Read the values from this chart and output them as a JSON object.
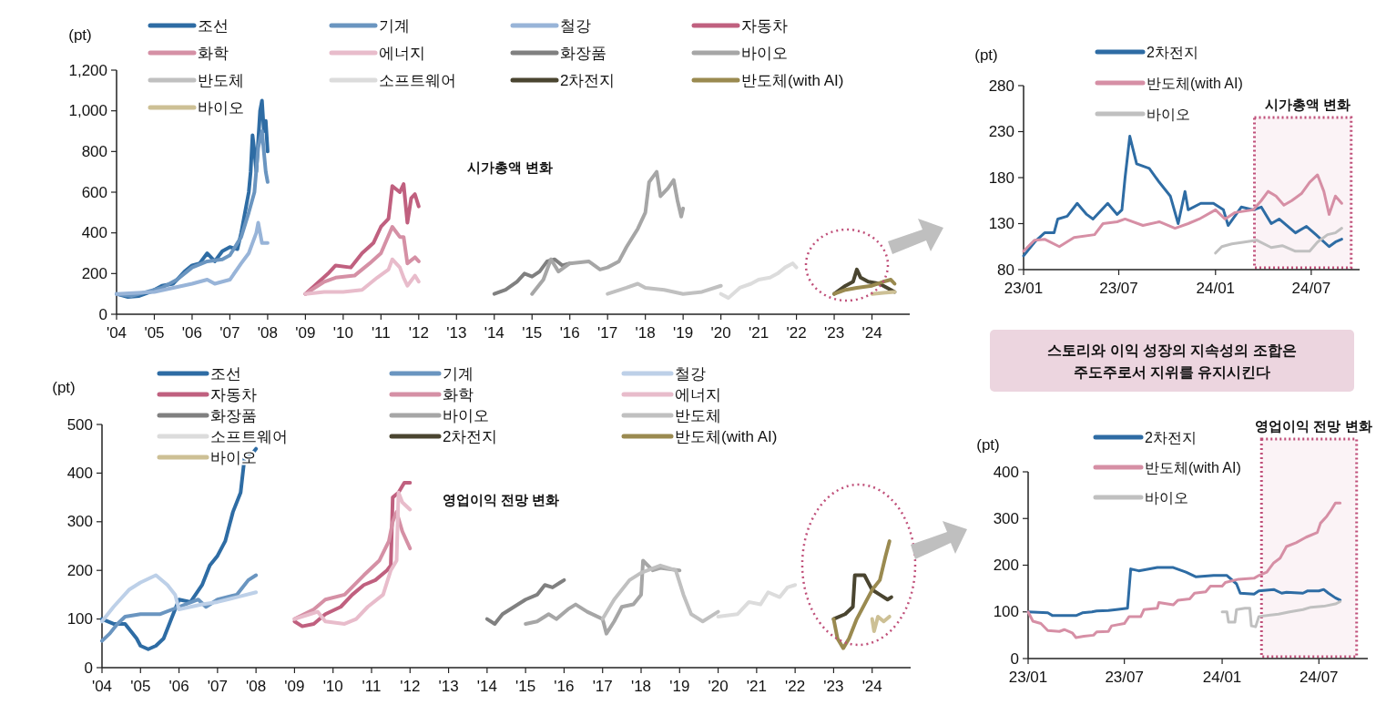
{
  "chart_data": [
    {
      "type": "line",
      "ylabel": "(pt)",
      "xlim": [
        2004,
        2025
      ],
      "ylim": [
        0,
        1200
      ],
      "xticks": [
        {
          "value": 2004,
          "label": "'04"
        },
        {
          "value": 2005,
          "label": "'05"
        },
        {
          "value": 2006,
          "label": "'06"
        },
        {
          "value": 2007,
          "label": "'07"
        },
        {
          "value": 2008,
          "label": "'08"
        },
        {
          "value": 2009,
          "label": "'09"
        },
        {
          "value": 2010,
          "label": "'10"
        },
        {
          "value": 2011,
          "label": "'11"
        },
        {
          "value": 2012,
          "label": "'12"
        },
        {
          "value": 2013,
          "label": "'13"
        },
        {
          "value": 2014,
          "label": "'14"
        },
        {
          "value": 2015,
          "label": "'15"
        },
        {
          "value": 2016,
          "label": "'16"
        },
        {
          "value": 2017,
          "label": "'17"
        },
        {
          "value": 2018,
          "label": "'18"
        },
        {
          "value": 2019,
          "label": "'19"
        },
        {
          "value": 2020,
          "label": "'20"
        },
        {
          "value": 2021,
          "label": "'21"
        },
        {
          "value": 2022,
          "label": "'22"
        },
        {
          "value": 2023,
          "label": "'23"
        },
        {
          "value": 2024,
          "label": "'24"
        }
      ],
      "yticks": [
        0,
        200,
        400,
        600,
        800,
        {
          "value": 1000,
          "label": "1,000"
        },
        {
          "value": 1200,
          "label": "1,200"
        }
      ],
      "legend": "top",
      "annotations": [
        "시가총액 변화"
      ],
      "series": [
        {
          "name": "조선",
          "color": "#2e6ca4",
          "x": [
            2004,
            2004.3,
            2004.6,
            2004.9,
            2005.2,
            2005.5,
            2005.8,
            2006,
            2006.2,
            2006.4,
            2006.6,
            2006.8,
            2007,
            2007.2,
            2007.3,
            2007.4,
            2007.5,
            2007.55,
            2007.6,
            2007.65,
            2007.7,
            2007.75,
            2007.8,
            2007.85,
            2007.9,
            2007.95,
            2008
          ],
          "values": [
            100,
            85,
            90,
            110,
            140,
            150,
            210,
            240,
            250,
            300,
            260,
            310,
            330,
            320,
            400,
            500,
            600,
            700,
            880,
            800,
            700,
            850,
            1000,
            1050,
            900,
            950,
            800
          ]
        },
        {
          "name": "기계",
          "color": "#6a95c0",
          "x": [
            2004,
            2004.4,
            2004.8,
            2005.2,
            2005.6,
            2006,
            2006.4,
            2006.8,
            2007,
            2007.3,
            2007.5,
            2007.65,
            2007.75,
            2007.85,
            2007.95,
            2008
          ],
          "values": [
            100,
            90,
            110,
            130,
            170,
            230,
            260,
            270,
            290,
            380,
            500,
            600,
            820,
            900,
            700,
            650
          ]
        },
        {
          "name": "철강",
          "color": "#98b4d8",
          "x": [
            2004,
            2005,
            2006,
            2006.4,
            2006.6,
            2007,
            2007.3,
            2007.5,
            2007.7,
            2007.75,
            2007.85,
            2008
          ],
          "values": [
            100,
            110,
            150,
            170,
            150,
            170,
            250,
            300,
            400,
            450,
            350,
            350
          ]
        },
        {
          "name": "자동차",
          "color": "#c0607f",
          "x": [
            2009,
            2009.3,
            2009.6,
            2009.8,
            2010.2,
            2010.5,
            2010.8,
            2011,
            2011.2,
            2011.3,
            2011.5,
            2011.6,
            2011.7,
            2011.8,
            2011.9,
            2012
          ],
          "values": [
            100,
            150,
            200,
            240,
            230,
            300,
            350,
            430,
            470,
            630,
            600,
            640,
            450,
            570,
            590,
            530
          ]
        },
        {
          "name": "화학",
          "color": "#d590a5",
          "x": [
            2009,
            2009.5,
            2009.8,
            2010.3,
            2010.7,
            2011,
            2011.3,
            2011.5,
            2011.6,
            2011.7,
            2011.9,
            2012
          ],
          "values": [
            100,
            160,
            180,
            190,
            250,
            300,
            430,
            380,
            380,
            250,
            280,
            260
          ]
        },
        {
          "name": "에너지",
          "color": "#e8bccb",
          "x": [
            2009,
            2009.5,
            2010,
            2010.5,
            2010.9,
            2011.2,
            2011.3,
            2011.5,
            2011.6,
            2011.7,
            2011.9,
            2012
          ],
          "values": [
            100,
            110,
            110,
            120,
            180,
            220,
            270,
            230,
            180,
            140,
            190,
            160
          ]
        },
        {
          "name": "화장품",
          "color": "#808080",
          "x": [
            2014,
            2014.3,
            2014.6,
            2014.8,
            2015,
            2015.2,
            2015.4,
            2015.6,
            2015.8,
            2016
          ],
          "values": [
            100,
            120,
            160,
            200,
            185,
            210,
            260,
            270,
            240,
            250
          ]
        },
        {
          "name": "바이오",
          "color": "#a6a6a6",
          "x": [
            2015,
            2015.3,
            2015.5,
            2015.7,
            2016,
            2016.5,
            2016.8,
            2017,
            2017.3,
            2017.5,
            2017.8,
            2018,
            2018.1,
            2018.3,
            2018.4,
            2018.6,
            2018.75,
            2018.85,
            2018.95,
            2019
          ],
          "values": [
            100,
            170,
            270,
            210,
            250,
            260,
            220,
            230,
            260,
            330,
            420,
            500,
            650,
            700,
            580,
            620,
            660,
            560,
            480,
            520
          ]
        },
        {
          "name": "반도체",
          "color": "#c0c0c0",
          "x": [
            2017,
            2017.5,
            2017.8,
            2018,
            2018.5,
            2019,
            2019.5,
            2020
          ],
          "values": [
            100,
            130,
            150,
            130,
            120,
            100,
            110,
            140
          ]
        },
        {
          "name": "소프트웨어",
          "color": "#dcdcdc",
          "x": [
            2020,
            2020.2,
            2020.5,
            2020.8,
            2021,
            2021.3,
            2021.5,
            2021.7,
            2021.9,
            2022
          ],
          "values": [
            100,
            80,
            130,
            150,
            170,
            180,
            200,
            230,
            250,
            230
          ]
        },
        {
          "name": "2차전지",
          "color": "#4a4530",
          "x": [
            2023,
            2023.3,
            2023.5,
            2023.6,
            2023.7,
            2023.9,
            2024.2,
            2024.5,
            2024.6
          ],
          "values": [
            100,
            140,
            160,
            220,
            180,
            160,
            150,
            120,
            110
          ]
        },
        {
          "name": "반도체(with AI)",
          "color": "#9a8a50",
          "x": [
            2023,
            2023.3,
            2023.6,
            2024,
            2024.3,
            2024.5,
            2024.6
          ],
          "values": [
            100,
            120,
            130,
            140,
            160,
            170,
            150
          ]
        },
        {
          "name": "바이오",
          "color": "#cdc095",
          "x": [
            2024,
            2024.3,
            2024.6
          ],
          "values": [
            100,
            105,
            110
          ]
        }
      ]
    },
    {
      "type": "line",
      "ylabel": "(pt)",
      "xlim": [
        "2023-01-01",
        "2024-10-01"
      ],
      "ylim": [
        80,
        280
      ],
      "xticks": [
        {
          "value": "2023-01-01",
          "label": "23/01"
        },
        {
          "value": "2023-07-01",
          "label": "23/07"
        },
        {
          "value": "2024-01-01",
          "label": "24/01"
        },
        {
          "value": "2024-07-01",
          "label": "24/07"
        }
      ],
      "yticks": [
        80,
        130,
        180,
        230,
        280
      ],
      "legend": "top",
      "bands": [
        {
          "axis": "x",
          "from": "2024-03-15",
          "to": "2024-09-15",
          "label": "시가총액 변화",
          "color": "#c0507a"
        }
      ],
      "series": [
        {
          "name": "2차전지",
          "color": "#2e6ca4",
          "x": [
            "2023-01-01",
            "2023-01-22",
            "2023-02-10",
            "2023-02-28",
            "2023-03-07",
            "2023-03-25",
            "2023-04-13",
            "2023-05-01",
            "2023-05-13",
            "2023-06-10",
            "2023-06-28",
            "2023-07-07",
            "2023-07-13",
            "2023-07-22",
            "2023-08-04",
            "2023-08-28",
            "2023-09-16",
            "2023-10-07",
            "2023-10-22",
            "2023-11-04",
            "2023-11-10",
            "2023-12-04",
            "2023-12-28",
            "2024-01-16",
            "2024-01-25",
            "2024-02-19",
            "2024-03-13",
            "2024-03-28",
            "2024-04-16",
            "2024-05-01",
            "2024-06-01",
            "2024-06-22",
            "2024-07-10",
            "2024-08-04",
            "2024-08-16",
            "2024-08-28"
          ],
          "values": [
            95,
            110,
            120,
            120,
            135,
            138,
            152,
            140,
            135,
            152,
            140,
            145,
            180,
            225,
            195,
            190,
            175,
            160,
            130,
            165,
            145,
            152,
            152,
            145,
            128,
            148,
            145,
            148,
            130,
            135,
            120,
            127,
            118,
            105,
            110,
            113
          ]
        },
        {
          "name": "반도체(with AI)",
          "color": "#d68fa5",
          "x": [
            "2023-01-01",
            "2023-01-22",
            "2023-02-10",
            "2023-03-10",
            "2023-04-07",
            "2023-05-16",
            "2023-06-01",
            "2023-06-28",
            "2023-07-13",
            "2023-08-16",
            "2023-09-16",
            "2023-10-16",
            "2023-11-10",
            "2023-12-01",
            "2024-01-01",
            "2024-01-19",
            "2024-02-07",
            "2024-03-13",
            "2024-03-28",
            "2024-04-10",
            "2024-04-25",
            "2024-05-10",
            "2024-05-25",
            "2024-06-13",
            "2024-06-28",
            "2024-07-13",
            "2024-07-25",
            "2024-08-04",
            "2024-08-16",
            "2024-08-28"
          ],
          "values": [
            100,
            112,
            113,
            105,
            115,
            118,
            130,
            132,
            135,
            128,
            132,
            125,
            130,
            135,
            145,
            135,
            142,
            145,
            155,
            165,
            160,
            150,
            155,
            163,
            175,
            183,
            165,
            140,
            160,
            152
          ]
        },
        {
          "name": "바이오",
          "color": "#c0c0c0",
          "x": [
            "2024-01-01",
            "2024-01-13",
            "2024-02-01",
            "2024-02-25",
            "2024-03-19",
            "2024-04-16",
            "2024-05-07",
            "2024-06-01",
            "2024-06-28",
            "2024-07-13",
            "2024-08-01",
            "2024-08-16",
            "2024-08-28"
          ],
          "values": [
            98,
            105,
            108,
            110,
            112,
            104,
            106,
            100,
            100,
            110,
            118,
            120,
            125
          ]
        }
      ]
    },
    {
      "type": "other",
      "annotations": [
        "스토리와 이익 성장의 지속성의 조합은",
        "주도주로서 지위를 유지시킨다"
      ]
    },
    {
      "type": "line",
      "ylabel": "(pt)",
      "xlim": [
        2004,
        2025
      ],
      "ylim": [
        0,
        500
      ],
      "xticks": [
        {
          "value": 2004,
          "label": "'04"
        },
        {
          "value": 2005,
          "label": "'05"
        },
        {
          "value": 2006,
          "label": "'06"
        },
        {
          "value": 2007,
          "label": "'07"
        },
        {
          "value": 2008,
          "label": "'08"
        },
        {
          "value": 2009,
          "label": "'09"
        },
        {
          "value": 2010,
          "label": "'10"
        },
        {
          "value": 2011,
          "label": "'11"
        },
        {
          "value": 2012,
          "label": "'12"
        },
        {
          "value": 2013,
          "label": "'13"
        },
        {
          "value": 2014,
          "label": "'14"
        },
        {
          "value": 2015,
          "label": "'15"
        },
        {
          "value": 2016,
          "label": "'16"
        },
        {
          "value": 2017,
          "label": "'17"
        },
        {
          "value": 2018,
          "label": "'18"
        },
        {
          "value": 2019,
          "label": "'19"
        },
        {
          "value": 2020,
          "label": "'20"
        },
        {
          "value": 2021,
          "label": "'21"
        },
        {
          "value": 2022,
          "label": "'22"
        },
        {
          "value": 2023,
          "label": "'23"
        },
        {
          "value": 2024,
          "label": "'24"
        }
      ],
      "yticks": [
        0,
        100,
        200,
        300,
        400,
        500
      ],
      "legend": "top",
      "annotations": [
        "영업이익 전망 변화"
      ],
      "series": [
        {
          "name": "조선",
          "color": "#2e6ca4",
          "x": [
            2004,
            2004.3,
            2004.6,
            2004.9,
            2005,
            2005.2,
            2005.4,
            2005.6,
            2005.8,
            2006,
            2006.3,
            2006.6,
            2006.8,
            2007,
            2007.2,
            2007.4,
            2007.6,
            2007.7,
            2007.9,
            2008
          ],
          "values": [
            100,
            90,
            90,
            60,
            45,
            38,
            45,
            60,
            100,
            140,
            135,
            170,
            210,
            230,
            260,
            320,
            360,
            430,
            440,
            450
          ]
        },
        {
          "name": "기계",
          "color": "#6a95c0",
          "x": [
            2004,
            2004.2,
            2004.4,
            2004.6,
            2005,
            2005.5,
            2006,
            2006.5,
            2006.7,
            2007,
            2007.5,
            2007.8,
            2008
          ],
          "values": [
            55,
            70,
            90,
            105,
            110,
            110,
            125,
            140,
            125,
            140,
            150,
            180,
            190
          ]
        },
        {
          "name": "철강",
          "color": "#bdd0e8",
          "x": [
            2004,
            2004.3,
            2004.7,
            2005,
            2005.4,
            2005.7,
            2005.9,
            2006,
            2006.3,
            2006.6,
            2007,
            2007.5,
            2008
          ],
          "values": [
            95,
            125,
            160,
            175,
            190,
            170,
            150,
            120,
            125,
            130,
            135,
            145,
            155
          ]
        },
        {
          "name": "자동차",
          "color": "#c0607f",
          "x": [
            2009,
            2009.2,
            2009.5,
            2009.8,
            2010.2,
            2010.5,
            2010.8,
            2011.1,
            2011.4,
            2011.5,
            2011.55,
            2011.7,
            2011.85,
            2012
          ],
          "values": [
            95,
            85,
            90,
            110,
            125,
            150,
            170,
            180,
            200,
            210,
            350,
            360,
            380,
            380
          ]
        },
        {
          "name": "화학",
          "color": "#d590a5",
          "x": [
            2009,
            2009.5,
            2009.8,
            2010.3,
            2010.8,
            2011.2,
            2011.45,
            2011.55,
            2011.65,
            2011.8,
            2012
          ],
          "values": [
            100,
            120,
            140,
            150,
            190,
            220,
            260,
            300,
            320,
            280,
            245
          ]
        },
        {
          "name": "에너지",
          "color": "#e8bccb",
          "x": [
            2009,
            2009.4,
            2009.6,
            2009.8,
            2010.3,
            2010.6,
            2010.9,
            2011.3,
            2011.5,
            2011.65,
            2011.7,
            2011.8,
            2012
          ],
          "values": [
            100,
            110,
            115,
            95,
            90,
            100,
            125,
            150,
            200,
            220,
            360,
            340,
            325
          ]
        },
        {
          "name": "화장품",
          "color": "#808080",
          "x": [
            2014,
            2014.2,
            2014.4,
            2014.7,
            2015,
            2015.3,
            2015.5,
            2015.7,
            2015.9,
            2016
          ],
          "values": [
            100,
            90,
            110,
            125,
            140,
            150,
            170,
            165,
            175,
            180
          ]
        },
        {
          "name": "바이오",
          "color": "#a6a6a6",
          "x": [
            2015,
            2015.3,
            2015.6,
            2015.8,
            2016.1,
            2016.3,
            2016.6,
            2017,
            2017.1,
            2017.3,
            2017.5,
            2017.8,
            2018,
            2018.05,
            2018.3,
            2018.5,
            2019
          ],
          "values": [
            90,
            95,
            110,
            100,
            120,
            130,
            115,
            100,
            70,
            95,
            125,
            130,
            150,
            220,
            200,
            205,
            200
          ]
        },
        {
          "name": "반도체",
          "color": "#c0c0c0",
          "x": [
            2017,
            2017.3,
            2017.7,
            2018,
            2018.5,
            2018.9,
            2019.1,
            2019.3,
            2019.6,
            2020
          ],
          "values": [
            100,
            140,
            180,
            195,
            210,
            200,
            150,
            110,
            95,
            115
          ]
        },
        {
          "name": "소프트웨어",
          "color": "#dcdcdc",
          "x": [
            2020,
            2020.5,
            2020.8,
            2021.1,
            2021.3,
            2021.6,
            2021.8,
            2022
          ],
          "values": [
            105,
            110,
            135,
            130,
            155,
            145,
            165,
            170
          ]
        },
        {
          "name": "2차전지",
          "color": "#4a4530",
          "x": [
            2023,
            2023.3,
            2023.5,
            2023.55,
            2023.8,
            2024,
            2024.2,
            2024.4,
            2024.5
          ],
          "values": [
            100,
            110,
            125,
            190,
            190,
            160,
            150,
            140,
            145
          ]
        },
        {
          "name": "반도체(with AI)",
          "color": "#9a8a50",
          "x": [
            2023,
            2023.1,
            2023.25,
            2023.4,
            2023.6,
            2023.8,
            2024,
            2024.2,
            2024.35,
            2024.45
          ],
          "values": [
            100,
            60,
            40,
            60,
            100,
            130,
            160,
            180,
            230,
            260
          ]
        },
        {
          "name": "바이오",
          "color": "#cdc095",
          "x": [
            2024,
            2024.05,
            2024.15,
            2024.3,
            2024.45
          ],
          "values": [
            100,
            75,
            105,
            95,
            105
          ]
        }
      ]
    },
    {
      "type": "line",
      "ylabel": "(pt)",
      "xlim": [
        "2023-01-01",
        "2024-10-01"
      ],
      "ylim": [
        0,
        400
      ],
      "xticks": [
        {
          "value": "2023-01-01",
          "label": "23/01"
        },
        {
          "value": "2023-07-01",
          "label": "23/07"
        },
        {
          "value": "2024-01-01",
          "label": "24/01"
        },
        {
          "value": "2024-07-01",
          "label": "24/07"
        }
      ],
      "yticks": [
        0,
        100,
        200,
        300,
        400
      ],
      "legend": "top",
      "bands": [
        {
          "axis": "x",
          "from": "2024-03-15",
          "to": "2024-09-10",
          "label": "영업이익 전망 변화",
          "color": "#c0507a"
        }
      ],
      "series": [
        {
          "name": "2차전지",
          "color": "#2e6ca4",
          "x": [
            "2023-01-01",
            "2023-02-07",
            "2023-02-16",
            "2023-04-01",
            "2023-04-13",
            "2023-05-01",
            "2023-05-10",
            "2023-06-01",
            "2023-06-16",
            "2023-07-07",
            "2023-07-13",
            "2023-07-28",
            "2023-09-01",
            "2023-10-01",
            "2023-10-25",
            "2023-11-13",
            "2023-12-16",
            "2024-01-10",
            "2024-01-28",
            "2024-02-04",
            "2024-03-01",
            "2024-03-10",
            "2024-04-07",
            "2024-04-22",
            "2024-05-01",
            "2024-06-01",
            "2024-06-10",
            "2024-07-01",
            "2024-07-10",
            "2024-07-19",
            "2024-08-01",
            "2024-08-10"
          ],
          "values": [
            100,
            98,
            92,
            92,
            98,
            100,
            102,
            103,
            105,
            108,
            192,
            188,
            195,
            195,
            185,
            175,
            178,
            178,
            160,
            140,
            138,
            145,
            148,
            140,
            142,
            140,
            145,
            145,
            148,
            140,
            130,
            125
          ]
        },
        {
          "name": "반도체(with AI)",
          "color": "#d68fa5",
          "x": [
            "2023-01-01",
            "2023-01-10",
            "2023-01-25",
            "2023-02-07",
            "2023-03-01",
            "2023-03-10",
            "2023-03-25",
            "2023-04-01",
            "2023-04-16",
            "2023-05-04",
            "2023-05-10",
            "2023-06-01",
            "2023-06-07",
            "2023-07-01",
            "2023-07-10",
            "2023-08-01",
            "2023-08-07",
            "2023-09-01",
            "2023-09-04",
            "2023-10-01",
            "2023-10-10",
            "2023-11-01",
            "2023-11-10",
            "2023-12-01",
            "2023-12-10",
            "2024-01-01",
            "2024-01-07",
            "2024-02-01",
            "2024-03-01",
            "2024-03-10",
            "2024-03-25",
            "2024-04-07",
            "2024-04-19",
            "2024-05-01",
            "2024-05-19",
            "2024-06-07",
            "2024-06-28",
            "2024-07-04",
            "2024-07-16",
            "2024-07-25",
            "2024-08-01",
            "2024-08-10"
          ],
          "values": [
            100,
            80,
            75,
            60,
            58,
            62,
            55,
            45,
            48,
            50,
            57,
            58,
            70,
            75,
            90,
            90,
            105,
            108,
            120,
            115,
            125,
            128,
            140,
            143,
            155,
            155,
            163,
            170,
            172,
            178,
            185,
            205,
            215,
            240,
            248,
            260,
            270,
            290,
            305,
            320,
            333,
            333
          ]
        },
        {
          "name": "바이오",
          "color": "#c0c0c0",
          "x": [
            "2024-01-01",
            "2024-01-10",
            "2024-01-13",
            "2024-01-25",
            "2024-01-28",
            "2024-02-13",
            "2024-02-22",
            "2024-02-25",
            "2024-03-04",
            "2024-03-10",
            "2024-04-01",
            "2024-04-16",
            "2024-05-07",
            "2024-06-01",
            "2024-06-16",
            "2024-07-10",
            "2024-08-01",
            "2024-08-10"
          ],
          "values": [
            100,
            100,
            78,
            78,
            105,
            108,
            108,
            70,
            68,
            90,
            93,
            95,
            100,
            105,
            110,
            112,
            117,
            122
          ]
        }
      ]
    }
  ]
}
